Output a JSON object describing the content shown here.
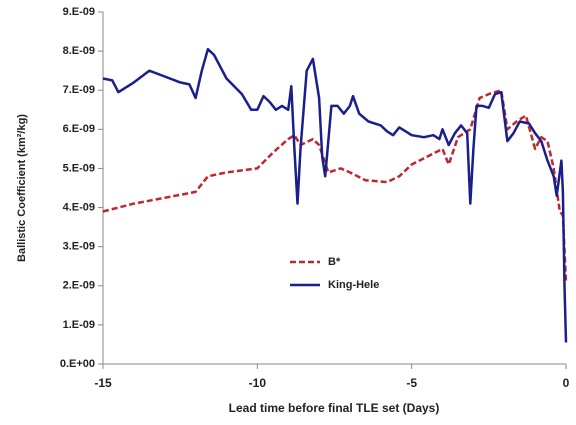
{
  "chart_data": {
    "type": "line",
    "x_label": "Lead time before final TLE set (Days)",
    "y_label": "Ballistic Coefficient (km²/kg)",
    "xlim": [
      -15,
      0
    ],
    "xticks": [
      -15,
      -10,
      -5,
      0
    ],
    "ylim": [
      0,
      9e-09
    ],
    "yticks": [
      {
        "value": 0,
        "label": "0.E+00"
      },
      {
        "value": 1e-09,
        "label": "1.E-09"
      },
      {
        "value": 2e-09,
        "label": "2.E-09"
      },
      {
        "value": 3e-09,
        "label": "3.E-09"
      },
      {
        "value": 4e-09,
        "label": "4.E-09"
      },
      {
        "value": 5e-09,
        "label": "5.E-09"
      },
      {
        "value": 6e-09,
        "label": "6.E-09"
      },
      {
        "value": 7e-09,
        "label": "7.E-09"
      },
      {
        "value": 8e-09,
        "label": "8.E-09"
      },
      {
        "value": 9e-09,
        "label": "9.E-09"
      }
    ],
    "legend": "center",
    "series": [
      {
        "name": "B*",
        "color": "#c0262d",
        "style": "dashed",
        "x": [
          -15,
          -14,
          -13,
          -12,
          -11.6,
          -11,
          -10,
          -9.5,
          -9,
          -8.8,
          -8.6,
          -8.2,
          -8,
          -7.7,
          -7.3,
          -7,
          -6.5,
          -5.8,
          -5.4,
          -5,
          -4.5,
          -4,
          -3.8,
          -3.5,
          -3.1,
          -2.8,
          -2.5,
          -2.1,
          -1.9,
          -1.6,
          -1.3,
          -1,
          -0.8,
          -0.6,
          -0.4,
          -0.2,
          -0.1,
          0
        ],
        "values": [
          3.9e-09,
          4.1e-09,
          4.25e-09,
          4.4e-09,
          4.8e-09,
          4.9e-09,
          5e-09,
          5.4e-09,
          5.75e-09,
          5.85e-09,
          5.6e-09,
          5.75e-09,
          5.6e-09,
          4.9e-09,
          5e-09,
          4.9e-09,
          4.7e-09,
          4.65e-09,
          4.8e-09,
          5.1e-09,
          5.3e-09,
          5.5e-09,
          5.1e-09,
          5.8e-09,
          6e-09,
          6.8e-09,
          6.9e-09,
          7e-09,
          6e-09,
          6.2e-09,
          6.35e-09,
          5.5e-09,
          5.8e-09,
          5.7e-09,
          5e-09,
          3.9e-09,
          3.8e-09,
          2.1e-09
        ]
      },
      {
        "name": "King-Hele",
        "color": "#1a1f8c",
        "style": "solid",
        "x": [
          -15,
          -14.7,
          -14.5,
          -14,
          -13.5,
          -13,
          -12.5,
          -12.2,
          -12,
          -11.8,
          -11.6,
          -11.4,
          -11,
          -10.5,
          -10.2,
          -10,
          -9.8,
          -9.6,
          -9.4,
          -9.2,
          -9,
          -8.9,
          -8.8,
          -8.7,
          -8.6,
          -8.4,
          -8.2,
          -8,
          -7.9,
          -7.8,
          -7.6,
          -7.4,
          -7.2,
          -7,
          -6.9,
          -6.7,
          -6.4,
          -6,
          -5.8,
          -5.6,
          -5.4,
          -5.2,
          -5,
          -4.6,
          -4.3,
          -4.1,
          -4,
          -3.8,
          -3.6,
          -3.4,
          -3.2,
          -3.1,
          -3,
          -2.9,
          -2.7,
          -2.5,
          -2.3,
          -2.1,
          -1.9,
          -1.7,
          -1.5,
          -1.2,
          -1,
          -0.8,
          -0.6,
          -0.4,
          -0.3,
          -0.2,
          -0.15,
          -0.1,
          -0.05,
          0
        ],
        "values": [
          7.3e-09,
          7.25e-09,
          6.95e-09,
          7.2e-09,
          7.5e-09,
          7.35e-09,
          7.2e-09,
          7.15e-09,
          6.8e-09,
          7.5e-09,
          8.05e-09,
          7.9e-09,
          7.3e-09,
          6.9e-09,
          6.5e-09,
          6.5e-09,
          6.85e-09,
          6.7e-09,
          6.5e-09,
          6.6e-09,
          6.5e-09,
          7.1e-09,
          5.5e-09,
          4.1e-09,
          5.5e-09,
          7.5e-09,
          7.8e-09,
          6.8e-09,
          5.3e-09,
          4.8e-09,
          6.6e-09,
          6.6e-09,
          6.4e-09,
          6.6e-09,
          6.85e-09,
          6.4e-09,
          6.2e-09,
          6.1e-09,
          5.95e-09,
          5.85e-09,
          6.05e-09,
          5.95e-09,
          5.85e-09,
          5.8e-09,
          5.85e-09,
          5.75e-09,
          6e-09,
          5.6e-09,
          5.9e-09,
          6.1e-09,
          5.9e-09,
          4.1e-09,
          5.5e-09,
          6.6e-09,
          6.6e-09,
          6.55e-09,
          6.9e-09,
          6.95e-09,
          5.7e-09,
          5.9e-09,
          6.2e-09,
          6.15e-09,
          5.9e-09,
          5.7e-09,
          5.2e-09,
          4.8e-09,
          4.3e-09,
          4.9e-09,
          5.2e-09,
          4.4e-09,
          2e-09,
          5.5e-10
        ]
      }
    ]
  }
}
